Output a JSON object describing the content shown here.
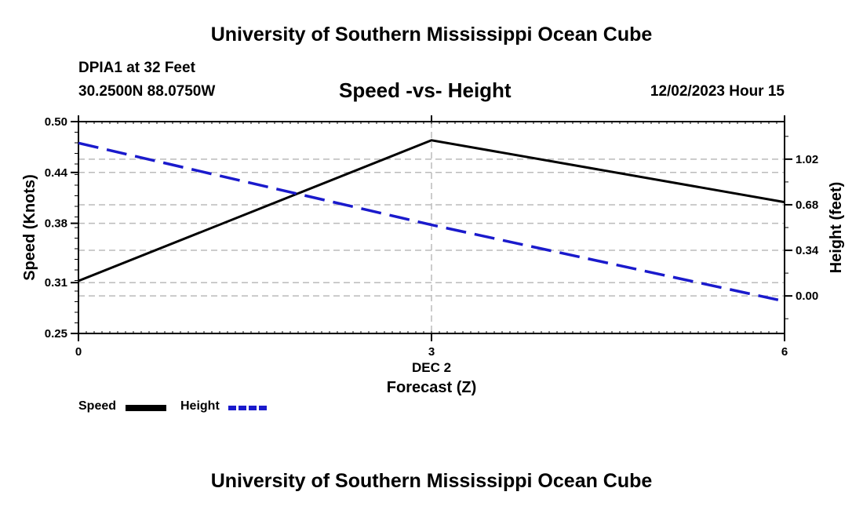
{
  "header": {
    "title": "University of Southern Mississippi Ocean Cube",
    "station": "DPIA1 at 32 Feet",
    "coordinates": "30.2500N  88.0750W",
    "date_hour": "12/02/2023 Hour 15"
  },
  "footer": {
    "title": "University of Southern Mississippi Ocean Cube"
  },
  "chart_data": {
    "type": "line",
    "title": "Speed -vs- Height",
    "xlabel": "Forecast (Z)",
    "x_sublabel": "DEC 2",
    "x": [
      0,
      3,
      6
    ],
    "xlim": [
      0,
      6
    ],
    "xticks": [
      "0",
      "3",
      "6"
    ],
    "y_left": {
      "label": "Speed (Knots)",
      "lim": [
        0.25,
        0.5
      ],
      "ticks": [
        "0.25",
        "0.31",
        "0.38",
        "0.44",
        "0.50"
      ]
    },
    "y_right": {
      "label": "Height (feet)",
      "lim": [
        -0.28,
        1.3
      ],
      "ticks": [
        "0.00",
        "0.34",
        "0.68",
        "1.02"
      ]
    },
    "series": [
      {
        "name": "Speed",
        "axis": "left",
        "values": [
          0.312,
          0.478,
          0.405
        ],
        "color": "#000000",
        "style": "solid"
      },
      {
        "name": "Height",
        "axis": "right",
        "values": [
          1.14,
          0.53,
          -0.04
        ],
        "color": "#1a1acc",
        "style": "dashed"
      }
    ],
    "legend": [
      "Speed",
      "Height"
    ],
    "legend_position": "bottom-left",
    "grid": true
  }
}
